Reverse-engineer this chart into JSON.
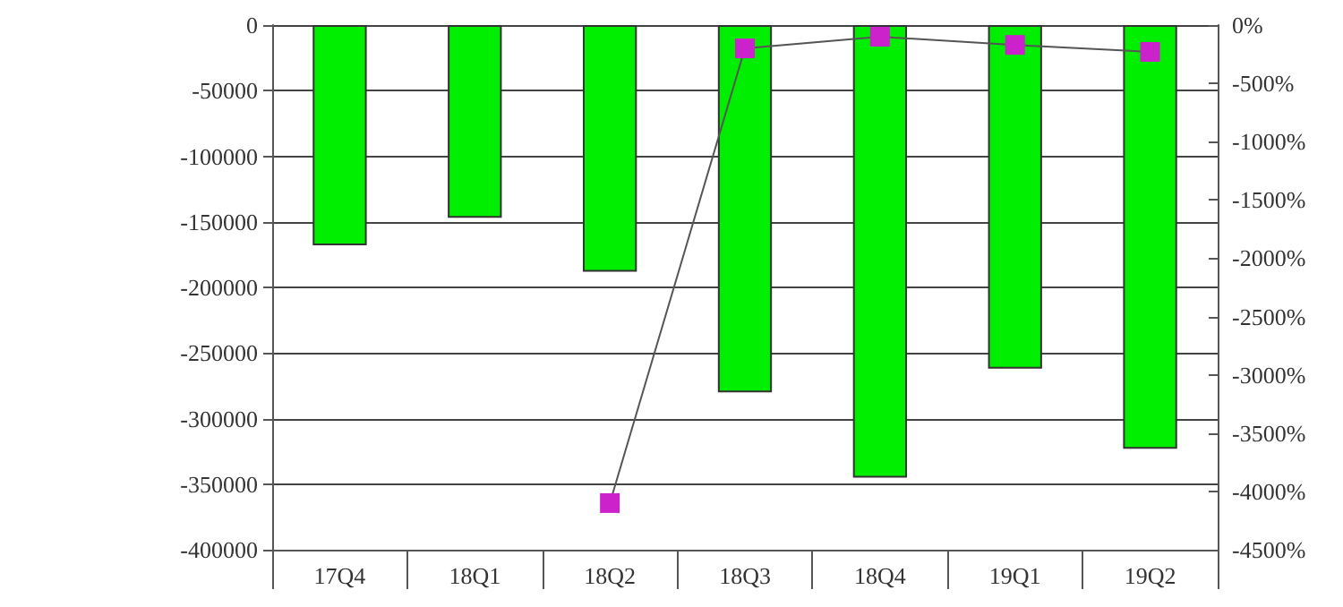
{
  "chart_data": {
    "type": "bar",
    "categories": [
      "17Q4",
      "18Q1",
      "18Q2",
      "18Q3",
      "18Q4",
      "19Q1",
      "19Q2"
    ],
    "series": [
      {
        "color": "#00ee00",
        "values": [
          -168000,
          -147000,
          -188000,
          -280000,
          -345000,
          -262000,
          -323000
        ]
      },
      {
        "type": "line",
        "axis": "y2",
        "color": "#cc22cc",
        "values": [
          null,
          null,
          -4100,
          -200,
          -100,
          -170,
          -230
        ]
      }
    ],
    "ylim": [
      -400000,
      0
    ],
    "yticks": [
      -400000,
      -350000,
      -300000,
      -250000,
      -200000,
      -150000,
      -100000,
      -50000,
      0
    ],
    "y2lim": [
      -4500,
      0
    ],
    "y2ticks": [
      {
        "value": -4500,
        "label": "-4500%"
      },
      {
        "value": -4000,
        "label": "-4000%"
      },
      {
        "value": -3500,
        "label": "-3500%"
      },
      {
        "value": -3000,
        "label": "-3000%"
      },
      {
        "value": -2500,
        "label": "-2500%"
      },
      {
        "value": -2000,
        "label": "-2000%"
      },
      {
        "value": -1500,
        "label": "-1500%"
      },
      {
        "value": -1000,
        "label": "-1000%"
      },
      {
        "value": -500,
        "label": "-500%"
      },
      {
        "value": 0,
        "label": "0%"
      }
    ],
    "grid": "y",
    "marker": "square"
  }
}
